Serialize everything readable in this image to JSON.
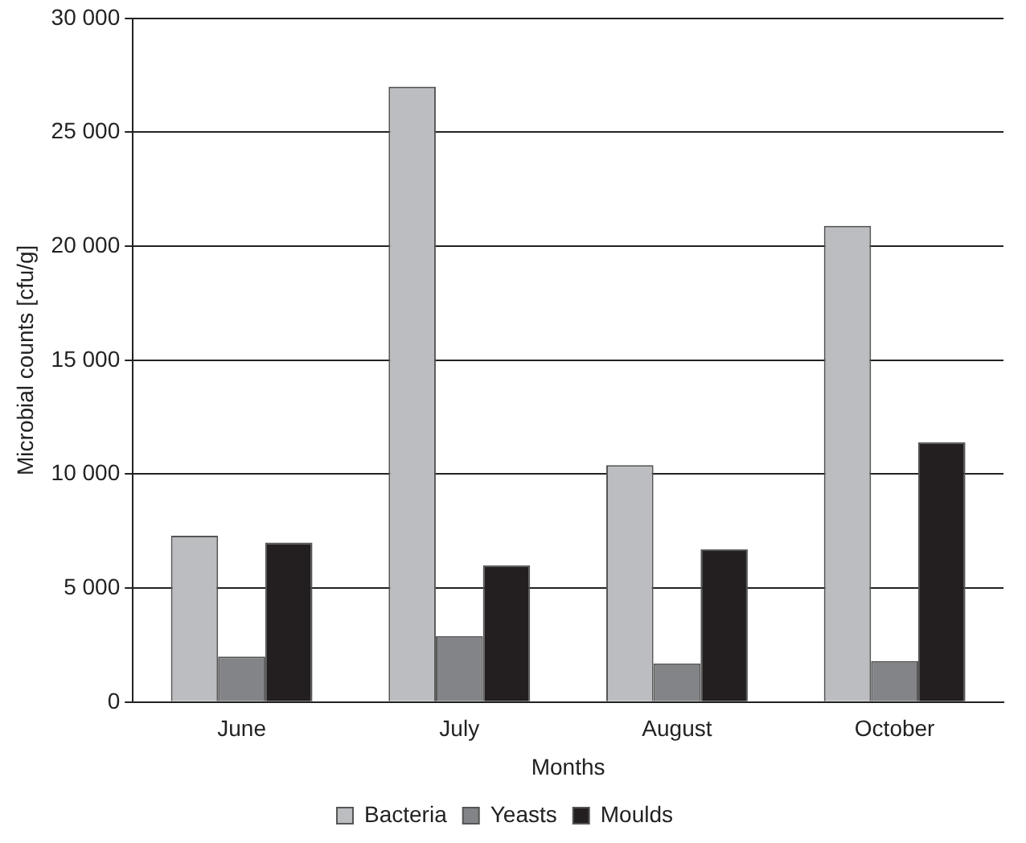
{
  "chart_data": {
    "type": "bar",
    "xlabel": "Months",
    "ylabel": "Microbial counts [cfu/g]",
    "categories": [
      "June",
      "July",
      "August",
      "October"
    ],
    "series": [
      {
        "name": "Bacteria",
        "color": "#bcbdc0",
        "values": [
          7300,
          27000,
          10400,
          20900
        ]
      },
      {
        "name": "Yeasts",
        "color": "#838487",
        "values": [
          2000,
          2900,
          1700,
          1800
        ]
      },
      {
        "name": "Moulds",
        "color": "#231f20",
        "values": [
          7000,
          6000,
          6700,
          11400
        ]
      }
    ],
    "ylim": [
      0,
      30000
    ],
    "yticks": [
      {
        "value": 0,
        "label": "0"
      },
      {
        "value": 5000,
        "label": "5 000"
      },
      {
        "value": 10000,
        "label": "10 000"
      },
      {
        "value": 15000,
        "label": "15 000"
      },
      {
        "value": 20000,
        "label": "20 000"
      },
      {
        "value": 25000,
        "label": "25 000"
      },
      {
        "value": 30000,
        "label": "30 000"
      }
    ],
    "grid": "y",
    "legend": "bottom"
  }
}
